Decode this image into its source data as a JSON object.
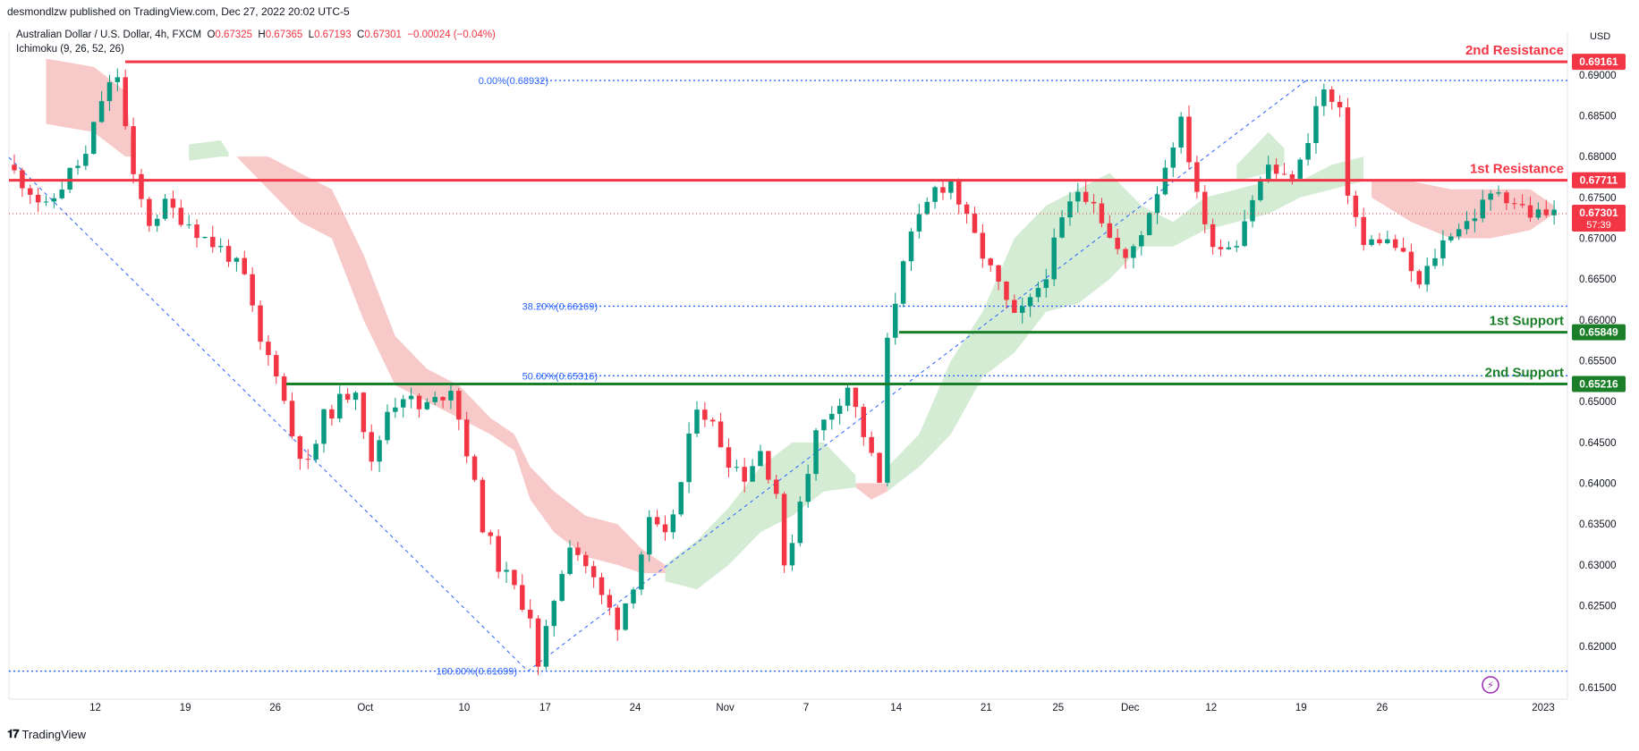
{
  "header": {
    "published": "desmondlzw published on TradingView.com, Dec 27, 2022 20:02 UTC-5"
  },
  "symbol": {
    "name": "Australian Dollar / U.S. Dollar, 4h, FXCM",
    "o_label": "O",
    "o": "0.67325",
    "h_label": "H",
    "h": "0.67365",
    "l_label": "L",
    "l": "0.67193",
    "c_label": "C",
    "c": "0.67301",
    "change": "−0.00024 (−0.04%)"
  },
  "indicator": "Ichimoku (9, 26, 52, 26)",
  "footer": {
    "brand": "TradingView"
  },
  "colors": {
    "red": "#f23645",
    "green": "#1b7f2a",
    "bull": "#089981",
    "bear": "#f23645",
    "fib": "#2962ff",
    "cloud_red": "#f8c9c9",
    "cloud_green": "#d4ecd4"
  },
  "chart_data": {
    "type": "candlestick",
    "currency": "USD",
    "y_ticks": [
      "0.69000",
      "0.68500",
      "0.68000",
      "0.67500",
      "0.67000",
      "0.66500",
      "0.66000",
      "0.65500",
      "0.65000",
      "0.64500",
      "0.64000",
      "0.63500",
      "0.63000",
      "0.62500",
      "0.62000",
      "0.61500"
    ],
    "ylim": [
      0.614,
      0.6948
    ],
    "x_ticks": [
      "12",
      "19",
      "26",
      "Oct",
      "10",
      "17",
      "24",
      "Nov",
      "7",
      "14",
      "21",
      "25",
      "Dec",
      "12",
      "19",
      "26",
      "2023"
    ],
    "levels": [
      {
        "label": "2nd Resistance",
        "value": 0.69161,
        "tag": "0.69161",
        "color": "#f23645"
      },
      {
        "label": "1st Resistance",
        "value": 0.67711,
        "tag": "0.67711",
        "color": "#f23645"
      },
      {
        "label": "1st Support",
        "value": 0.65849,
        "tag": "0.65849",
        "color": "#1b7f2a"
      },
      {
        "label": "2nd Support",
        "value": 0.65216,
        "tag": "0.65216",
        "color": "#1b7f2a"
      }
    ],
    "fibonacci": [
      {
        "label": "0.00%(0.68932)",
        "value": 0.68932
      },
      {
        "label": "38.20%(0.66169)",
        "value": 0.66169
      },
      {
        "label": "50.00%(0.65316)",
        "value": 0.65316
      },
      {
        "label": "100.00%(0.61699)",
        "value": 0.61699
      }
    ],
    "current_price": {
      "value": 0.67301,
      "tag": "0.67301",
      "countdown": "57:39"
    },
    "price_path": [
      [
        0,
        0.679
      ],
      [
        3,
        0.676
      ],
      [
        5,
        0.6735
      ],
      [
        8,
        0.678
      ],
      [
        10,
        0.68
      ],
      [
        12,
        0.687
      ],
      [
        14,
        0.69
      ],
      [
        16,
        0.677
      ],
      [
        18,
        0.672
      ],
      [
        20,
        0.674
      ],
      [
        23,
        0.672
      ],
      [
        25,
        0.67
      ],
      [
        28,
        0.668
      ],
      [
        30,
        0.665
      ],
      [
        32,
        0.657
      ],
      [
        34,
        0.654
      ],
      [
        36,
        0.646
      ],
      [
        38,
        0.642
      ],
      [
        40,
        0.648
      ],
      [
        42,
        0.65
      ],
      [
        44,
        0.652
      ],
      [
        46,
        0.642
      ],
      [
        48,
        0.649
      ],
      [
        50,
        0.651
      ],
      [
        52,
        0.649
      ],
      [
        54,
        0.65
      ],
      [
        56,
        0.652
      ],
      [
        58,
        0.644
      ],
      [
        60,
        0.635
      ],
      [
        62,
        0.63
      ],
      [
        64,
        0.627
      ],
      [
        66,
        0.624
      ],
      [
        67,
        0.617
      ],
      [
        69,
        0.626
      ],
      [
        71,
        0.633
      ],
      [
        73,
        0.63
      ],
      [
        75,
        0.626
      ],
      [
        77,
        0.623
      ],
      [
        79,
        0.628
      ],
      [
        81,
        0.635
      ],
      [
        83,
        0.633
      ],
      [
        85,
        0.64
      ],
      [
        87,
        0.65
      ],
      [
        89,
        0.647
      ],
      [
        91,
        0.643
      ],
      [
        93,
        0.641
      ],
      [
        95,
        0.644
      ],
      [
        97,
        0.639
      ],
      [
        98,
        0.629
      ],
      [
        100,
        0.638
      ],
      [
        102,
        0.646
      ],
      [
        104,
        0.649
      ],
      [
        106,
        0.652
      ],
      [
        108,
        0.646
      ],
      [
        110,
        0.64
      ],
      [
        111,
        0.657
      ],
      [
        113,
        0.668
      ],
      [
        115,
        0.672
      ],
      [
        117,
        0.676
      ],
      [
        119,
        0.677
      ],
      [
        121,
        0.672
      ],
      [
        123,
        0.668
      ],
      [
        125,
        0.664
      ],
      [
        127,
        0.66
      ],
      [
        129,
        0.662
      ],
      [
        131,
        0.666
      ],
      [
        133,
        0.672
      ],
      [
        135,
        0.676
      ],
      [
        137,
        0.675
      ],
      [
        139,
        0.67
      ],
      [
        141,
        0.667
      ],
      [
        143,
        0.671
      ],
      [
        145,
        0.676
      ],
      [
        147,
        0.682
      ],
      [
        148,
        0.684
      ],
      [
        150,
        0.676
      ],
      [
        151,
        0.671
      ],
      [
        153,
        0.669
      ],
      [
        155,
        0.67
      ],
      [
        157,
        0.675
      ],
      [
        159,
        0.679
      ],
      [
        161,
        0.677
      ],
      [
        163,
        0.679
      ],
      [
        165,
        0.686
      ],
      [
        166,
        0.688
      ],
      [
        168,
        0.685
      ],
      [
        169,
        0.676
      ],
      [
        171,
        0.669
      ],
      [
        173,
        0.67
      ],
      [
        175,
        0.669
      ],
      [
        177,
        0.666
      ],
      [
        178,
        0.664
      ],
      [
        180,
        0.668
      ],
      [
        182,
        0.671
      ],
      [
        184,
        0.672
      ],
      [
        186,
        0.674
      ],
      [
        188,
        0.676
      ],
      [
        190,
        0.6745
      ],
      [
        192,
        0.673
      ]
    ],
    "price_n": 195,
    "cloud_red": [
      [
        {
          "i": 4,
          "a": 0.692,
          "b": 0.684
        },
        {
          "i": 10,
          "a": 0.691,
          "b": 0.683
        },
        {
          "i": 14,
          "a": 0.688,
          "b": 0.68
        },
        {
          "i": 15,
          "a": 0.68,
          "b": 0.68
        }
      ],
      [
        {
          "i": 28,
          "a": 0.68,
          "b": 0.68
        },
        {
          "i": 32,
          "a": 0.68,
          "b": 0.676
        },
        {
          "i": 36,
          "a": 0.678,
          "b": 0.672
        },
        {
          "i": 40,
          "a": 0.676,
          "b": 0.67
        },
        {
          "i": 44,
          "a": 0.668,
          "b": 0.66
        },
        {
          "i": 48,
          "a": 0.658,
          "b": 0.652
        },
        {
          "i": 52,
          "a": 0.654,
          "b": 0.65
        },
        {
          "i": 56,
          "a": 0.652,
          "b": 0.648
        },
        {
          "i": 60,
          "a": 0.648,
          "b": 0.646
        },
        {
          "i": 63,
          "a": 0.646,
          "b": 0.644
        },
        {
          "i": 65,
          "a": 0.642,
          "b": 0.638
        },
        {
          "i": 68,
          "a": 0.639,
          "b": 0.634
        },
        {
          "i": 72,
          "a": 0.636,
          "b": 0.631
        },
        {
          "i": 76,
          "a": 0.635,
          "b": 0.63
        },
        {
          "i": 79,
          "a": 0.632,
          "b": 0.629
        },
        {
          "i": 82,
          "a": 0.63,
          "b": 0.629
        }
      ],
      [
        {
          "i": 106,
          "a": 0.64,
          "b": 0.6395
        },
        {
          "i": 108,
          "a": 0.64,
          "b": 0.638
        },
        {
          "i": 110,
          "a": 0.64,
          "b": 0.639
        }
      ],
      [
        {
          "i": 171,
          "a": 0.677,
          "b": 0.675
        },
        {
          "i": 176,
          "a": 0.677,
          "b": 0.672
        },
        {
          "i": 181,
          "a": 0.676,
          "b": 0.67
        },
        {
          "i": 186,
          "a": 0.676,
          "b": 0.67
        },
        {
          "i": 191,
          "a": 0.676,
          "b": 0.671
        },
        {
          "i": 194,
          "a": 0.674,
          "b": 0.673
        }
      ]
    ],
    "cloud_green": [
      [
        {
          "i": 22,
          "a": 0.6815,
          "b": 0.6795
        },
        {
          "i": 26,
          "a": 0.682,
          "b": 0.68
        },
        {
          "i": 27,
          "a": 0.6805,
          "b": 0.68
        }
      ],
      [
        {
          "i": 82,
          "a": 0.63,
          "b": 0.628
        },
        {
          "i": 86,
          "a": 0.633,
          "b": 0.627
        },
        {
          "i": 90,
          "a": 0.637,
          "b": 0.63
        },
        {
          "i": 94,
          "a": 0.642,
          "b": 0.634
        },
        {
          "i": 98,
          "a": 0.645,
          "b": 0.636
        },
        {
          "i": 102,
          "a": 0.645,
          "b": 0.639
        },
        {
          "i": 106,
          "a": 0.641,
          "b": 0.6395
        }
      ],
      [
        {
          "i": 110,
          "a": 0.642,
          "b": 0.639
        },
        {
          "i": 114,
          "a": 0.646,
          "b": 0.642
        },
        {
          "i": 118,
          "a": 0.655,
          "b": 0.646
        },
        {
          "i": 122,
          "a": 0.661,
          "b": 0.653
        },
        {
          "i": 126,
          "a": 0.67,
          "b": 0.656
        },
        {
          "i": 130,
          "a": 0.674,
          "b": 0.661
        },
        {
          "i": 134,
          "a": 0.676,
          "b": 0.662
        },
        {
          "i": 138,
          "a": 0.678,
          "b": 0.665
        },
        {
          "i": 142,
          "a": 0.674,
          "b": 0.669
        },
        {
          "i": 146,
          "a": 0.672,
          "b": 0.669
        },
        {
          "i": 150,
          "a": 0.675,
          "b": 0.671
        },
        {
          "i": 154,
          "a": 0.676,
          "b": 0.672
        },
        {
          "i": 158,
          "a": 0.677,
          "b": 0.673
        },
        {
          "i": 162,
          "a": 0.677,
          "b": 0.675
        },
        {
          "i": 166,
          "a": 0.679,
          "b": 0.676
        },
        {
          "i": 170,
          "a": 0.68,
          "b": 0.677
        }
      ],
      [
        {
          "i": 154,
          "a": 0.679,
          "b": 0.677
        },
        {
          "i": 158,
          "a": 0.683,
          "b": 0.678
        },
        {
          "i": 160,
          "a": 0.681,
          "b": 0.679
        }
      ]
    ]
  }
}
